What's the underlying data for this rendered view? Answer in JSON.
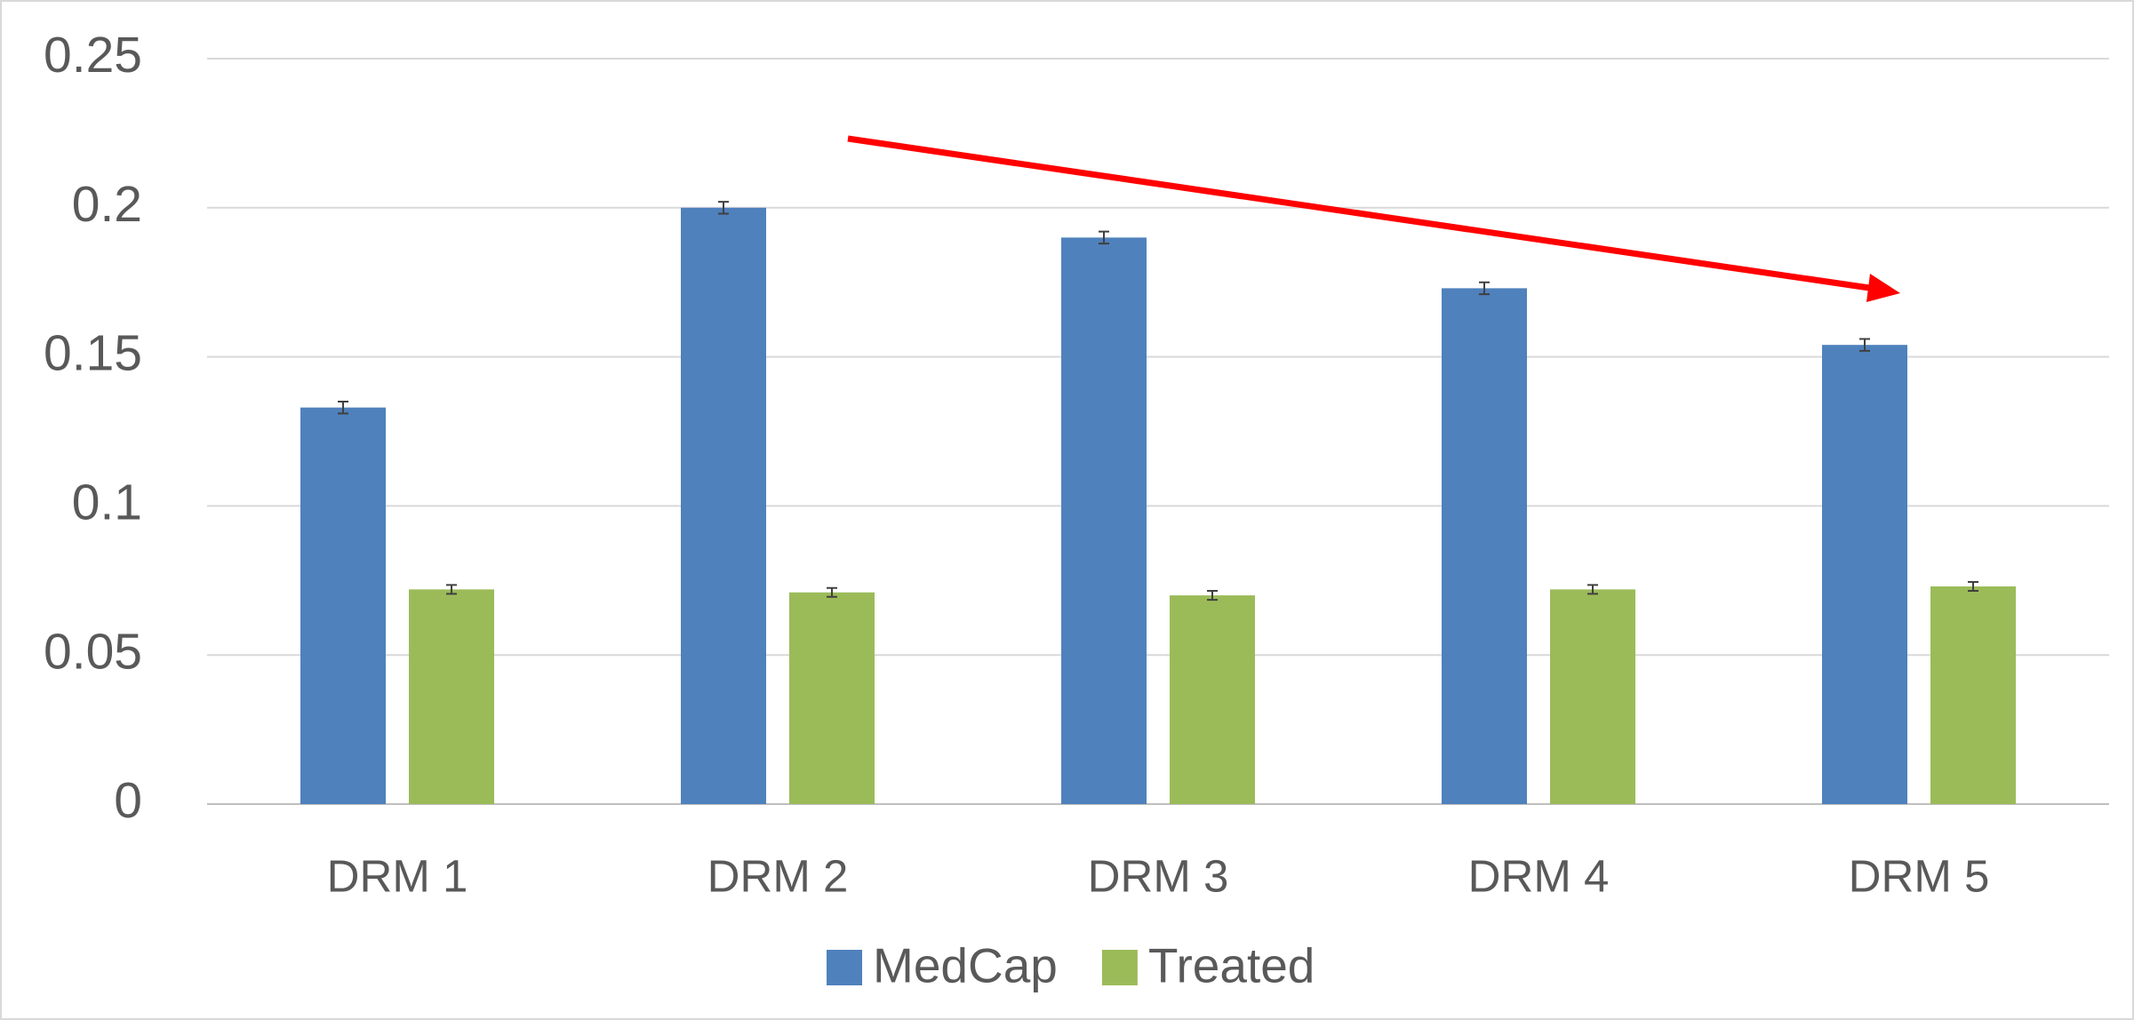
{
  "chart_data": {
    "type": "bar",
    "categories": [
      "DRM 1",
      "DRM 2",
      "DRM 3",
      "DRM 4",
      "DRM 5"
    ],
    "series": [
      {
        "name": "MedCap",
        "color": "#4f81bd",
        "values": [
          0.133,
          0.2,
          0.19,
          0.173,
          0.154
        ],
        "errors": [
          0.002,
          0.002,
          0.002,
          0.002,
          0.002
        ]
      },
      {
        "name": "Treated",
        "color": "#9bbb59",
        "values": [
          0.072,
          0.071,
          0.07,
          0.072,
          0.073
        ],
        "errors": [
          0.0015,
          0.0015,
          0.0015,
          0.0015,
          0.0015
        ]
      }
    ],
    "ylim": [
      0,
      0.25
    ],
    "yticks": [
      0,
      0.05,
      0.1,
      0.15,
      0.2,
      0.25
    ],
    "grid": true,
    "legend": "bottom"
  }
}
